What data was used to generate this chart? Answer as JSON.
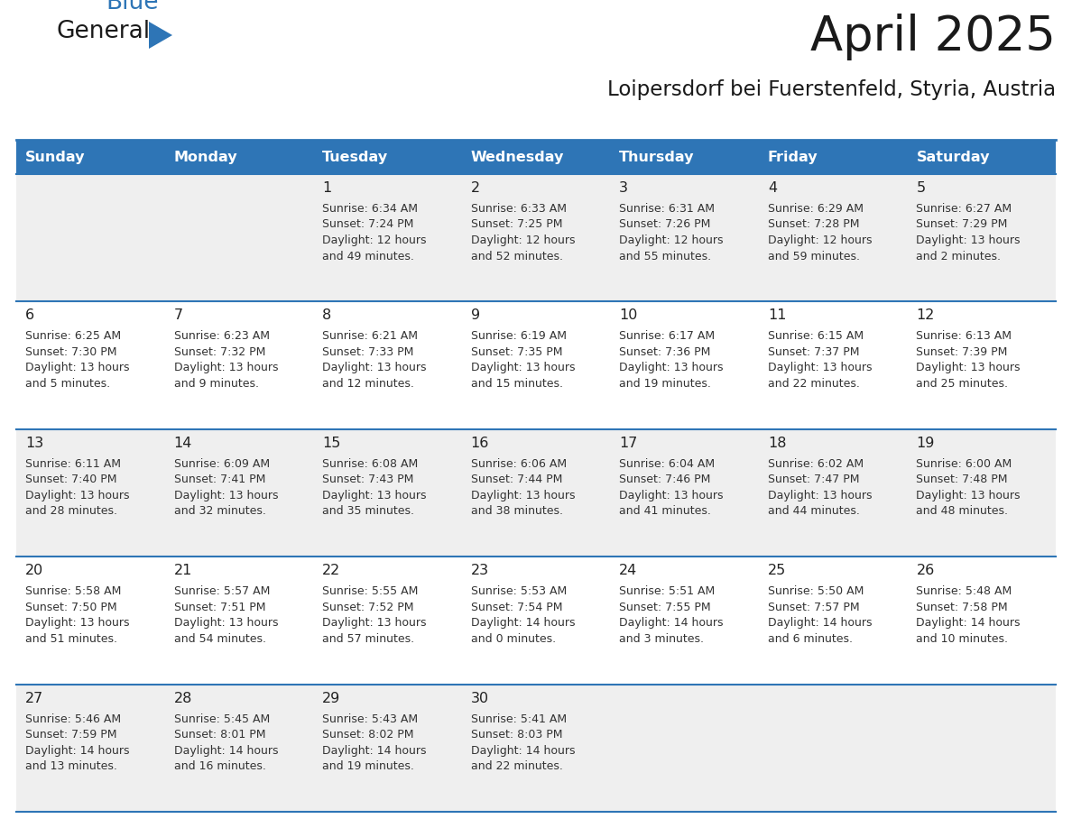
{
  "title": "April 2025",
  "subtitle": "Loipersdorf bei Fuerstenfeld, Styria, Austria",
  "days_of_week": [
    "Sunday",
    "Monday",
    "Tuesday",
    "Wednesday",
    "Thursday",
    "Friday",
    "Saturday"
  ],
  "header_bg": "#2e75b6",
  "header_text": "#ffffff",
  "row_bg_odd": "#efefef",
  "row_bg_even": "#ffffff",
  "cell_border": "#2e75b6",
  "day_number_color": "#222222",
  "cell_text_color": "#333333",
  "logo_general_color": "#1a1a1a",
  "logo_blue_color": "#2e75b6",
  "calendar_data": [
    {
      "day": 1,
      "col": 2,
      "row": 0,
      "sunrise": "6:34 AM",
      "sunset": "7:24 PM",
      "daylight_h": "12 hours",
      "daylight_m": "and 49 minutes."
    },
    {
      "day": 2,
      "col": 3,
      "row": 0,
      "sunrise": "6:33 AM",
      "sunset": "7:25 PM",
      "daylight_h": "12 hours",
      "daylight_m": "and 52 minutes."
    },
    {
      "day": 3,
      "col": 4,
      "row": 0,
      "sunrise": "6:31 AM",
      "sunset": "7:26 PM",
      "daylight_h": "12 hours",
      "daylight_m": "and 55 minutes."
    },
    {
      "day": 4,
      "col": 5,
      "row": 0,
      "sunrise": "6:29 AM",
      "sunset": "7:28 PM",
      "daylight_h": "12 hours",
      "daylight_m": "and 59 minutes."
    },
    {
      "day": 5,
      "col": 6,
      "row": 0,
      "sunrise": "6:27 AM",
      "sunset": "7:29 PM",
      "daylight_h": "13 hours",
      "daylight_m": "and 2 minutes."
    },
    {
      "day": 6,
      "col": 0,
      "row": 1,
      "sunrise": "6:25 AM",
      "sunset": "7:30 PM",
      "daylight_h": "13 hours",
      "daylight_m": "and 5 minutes."
    },
    {
      "day": 7,
      "col": 1,
      "row": 1,
      "sunrise": "6:23 AM",
      "sunset": "7:32 PM",
      "daylight_h": "13 hours",
      "daylight_m": "and 9 minutes."
    },
    {
      "day": 8,
      "col": 2,
      "row": 1,
      "sunrise": "6:21 AM",
      "sunset": "7:33 PM",
      "daylight_h": "13 hours",
      "daylight_m": "and 12 minutes."
    },
    {
      "day": 9,
      "col": 3,
      "row": 1,
      "sunrise": "6:19 AM",
      "sunset": "7:35 PM",
      "daylight_h": "13 hours",
      "daylight_m": "and 15 minutes."
    },
    {
      "day": 10,
      "col": 4,
      "row": 1,
      "sunrise": "6:17 AM",
      "sunset": "7:36 PM",
      "daylight_h": "13 hours",
      "daylight_m": "and 19 minutes."
    },
    {
      "day": 11,
      "col": 5,
      "row": 1,
      "sunrise": "6:15 AM",
      "sunset": "7:37 PM",
      "daylight_h": "13 hours",
      "daylight_m": "and 22 minutes."
    },
    {
      "day": 12,
      "col": 6,
      "row": 1,
      "sunrise": "6:13 AM",
      "sunset": "7:39 PM",
      "daylight_h": "13 hours",
      "daylight_m": "and 25 minutes."
    },
    {
      "day": 13,
      "col": 0,
      "row": 2,
      "sunrise": "6:11 AM",
      "sunset": "7:40 PM",
      "daylight_h": "13 hours",
      "daylight_m": "and 28 minutes."
    },
    {
      "day": 14,
      "col": 1,
      "row": 2,
      "sunrise": "6:09 AM",
      "sunset": "7:41 PM",
      "daylight_h": "13 hours",
      "daylight_m": "and 32 minutes."
    },
    {
      "day": 15,
      "col": 2,
      "row": 2,
      "sunrise": "6:08 AM",
      "sunset": "7:43 PM",
      "daylight_h": "13 hours",
      "daylight_m": "and 35 minutes."
    },
    {
      "day": 16,
      "col": 3,
      "row": 2,
      "sunrise": "6:06 AM",
      "sunset": "7:44 PM",
      "daylight_h": "13 hours",
      "daylight_m": "and 38 minutes."
    },
    {
      "day": 17,
      "col": 4,
      "row": 2,
      "sunrise": "6:04 AM",
      "sunset": "7:46 PM",
      "daylight_h": "13 hours",
      "daylight_m": "and 41 minutes."
    },
    {
      "day": 18,
      "col": 5,
      "row": 2,
      "sunrise": "6:02 AM",
      "sunset": "7:47 PM",
      "daylight_h": "13 hours",
      "daylight_m": "and 44 minutes."
    },
    {
      "day": 19,
      "col": 6,
      "row": 2,
      "sunrise": "6:00 AM",
      "sunset": "7:48 PM",
      "daylight_h": "13 hours",
      "daylight_m": "and 48 minutes."
    },
    {
      "day": 20,
      "col": 0,
      "row": 3,
      "sunrise": "5:58 AM",
      "sunset": "7:50 PM",
      "daylight_h": "13 hours",
      "daylight_m": "and 51 minutes."
    },
    {
      "day": 21,
      "col": 1,
      "row": 3,
      "sunrise": "5:57 AM",
      "sunset": "7:51 PM",
      "daylight_h": "13 hours",
      "daylight_m": "and 54 minutes."
    },
    {
      "day": 22,
      "col": 2,
      "row": 3,
      "sunrise": "5:55 AM",
      "sunset": "7:52 PM",
      "daylight_h": "13 hours",
      "daylight_m": "and 57 minutes."
    },
    {
      "day": 23,
      "col": 3,
      "row": 3,
      "sunrise": "5:53 AM",
      "sunset": "7:54 PM",
      "daylight_h": "14 hours",
      "daylight_m": "and 0 minutes."
    },
    {
      "day": 24,
      "col": 4,
      "row": 3,
      "sunrise": "5:51 AM",
      "sunset": "7:55 PM",
      "daylight_h": "14 hours",
      "daylight_m": "and 3 minutes."
    },
    {
      "day": 25,
      "col": 5,
      "row": 3,
      "sunrise": "5:50 AM",
      "sunset": "7:57 PM",
      "daylight_h": "14 hours",
      "daylight_m": "and 6 minutes."
    },
    {
      "day": 26,
      "col": 6,
      "row": 3,
      "sunrise": "5:48 AM",
      "sunset": "7:58 PM",
      "daylight_h": "14 hours",
      "daylight_m": "and 10 minutes."
    },
    {
      "day": 27,
      "col": 0,
      "row": 4,
      "sunrise": "5:46 AM",
      "sunset": "7:59 PM",
      "daylight_h": "14 hours",
      "daylight_m": "and 13 minutes."
    },
    {
      "day": 28,
      "col": 1,
      "row": 4,
      "sunrise": "5:45 AM",
      "sunset": "8:01 PM",
      "daylight_h": "14 hours",
      "daylight_m": "and 16 minutes."
    },
    {
      "day": 29,
      "col": 2,
      "row": 4,
      "sunrise": "5:43 AM",
      "sunset": "8:02 PM",
      "daylight_h": "14 hours",
      "daylight_m": "and 19 minutes."
    },
    {
      "day": 30,
      "col": 3,
      "row": 4,
      "sunrise": "5:41 AM",
      "sunset": "8:03 PM",
      "daylight_h": "14 hours",
      "daylight_m": "and 22 minutes."
    }
  ]
}
